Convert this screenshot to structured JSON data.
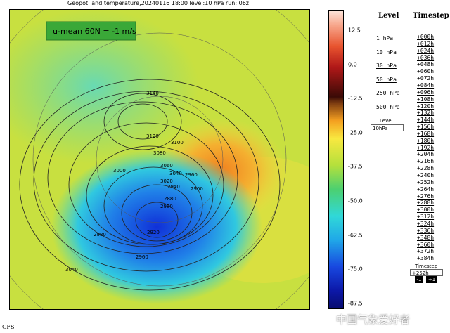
{
  "header": {
    "title": "Geopot. and temperature,20240116 18:00 level:10 hPa run: 06z"
  },
  "map": {
    "annotation": "u-mean 60N = -1 m/s",
    "contour_labels": [
      "3140",
      "3120",
      "3100",
      "3080",
      "3060",
      "3040",
      "3020",
      "3000",
      "2980",
      "2960",
      "2940",
      "2920",
      "2900",
      "2880",
      "2960",
      "3040",
      "2980"
    ]
  },
  "colorbar": {
    "labels": [
      "12.5",
      "0.0",
      "-12.5",
      "-25.0",
      "-37.5",
      "-50.0",
      "-62.5",
      "-75.0",
      "-87.5"
    ]
  },
  "level": {
    "heading": "Level",
    "links": [
      "1 hPa",
      "10 hPa",
      "30 hPa",
      "50 hPa",
      "250 hPa",
      "500 hPa"
    ],
    "label": "Level",
    "input": "10hPa"
  },
  "timestep": {
    "heading": "Timestep",
    "links": [
      "+000h",
      "+012h",
      "+024h",
      "+036h",
      "+048h",
      "+060h",
      "+072h",
      "+084h",
      "+096h",
      "+108h",
      "+120h",
      "+132h",
      "+144h",
      "+156h",
      "+168h",
      "+180h",
      "+192h",
      "+204h",
      "+216h",
      "+228h",
      "+240h",
      "+252h",
      "+264h",
      "+276h",
      "+288h",
      "+300h",
      "+312h",
      "+324h",
      "+336h",
      "+348h",
      "+360h",
      "+372h",
      "+384h"
    ],
    "label": "Timestep",
    "input": "+252h",
    "prev": "-1",
    "next": "+1"
  },
  "footer": {
    "model": "GFS",
    "watermark": "中国气象爱好者"
  }
}
